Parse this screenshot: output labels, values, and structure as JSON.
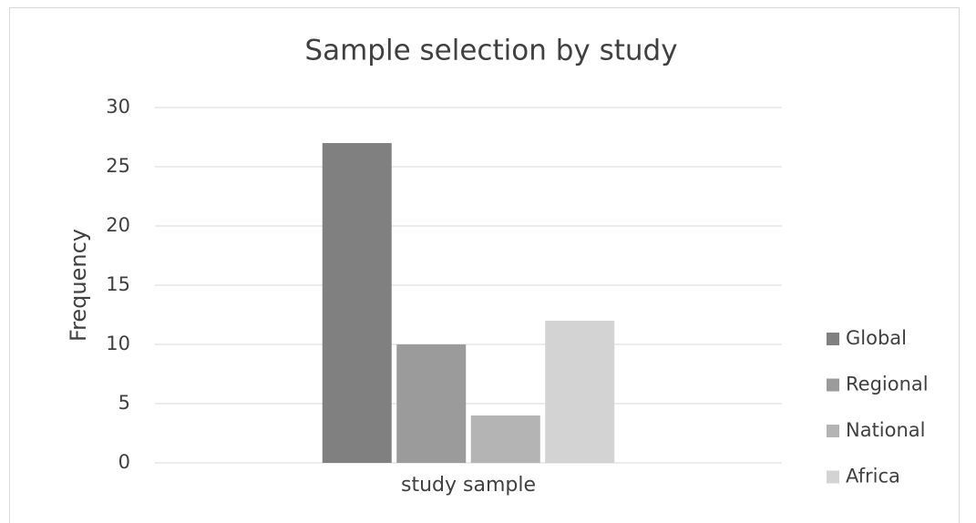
{
  "chart_data": {
    "type": "bar",
    "title": "Sample selection by study",
    "y_label": "Frequency",
    "categories": [
      "study sample"
    ],
    "series": [
      {
        "name": "Global",
        "color": "#808080",
        "values": [
          27
        ]
      },
      {
        "name": "Regional",
        "color": "#9b9b9b",
        "values": [
          10
        ]
      },
      {
        "name": "National",
        "color": "#b4b4b4",
        "values": [
          4
        ]
      },
      {
        "name": "Africa",
        "color": "#d3d3d3",
        "values": [
          12
        ]
      }
    ],
    "ylim": [
      0,
      30
    ],
    "yticks": [
      0,
      5,
      10,
      15,
      20,
      25,
      30
    ],
    "grid": true,
    "legend": "right"
  }
}
